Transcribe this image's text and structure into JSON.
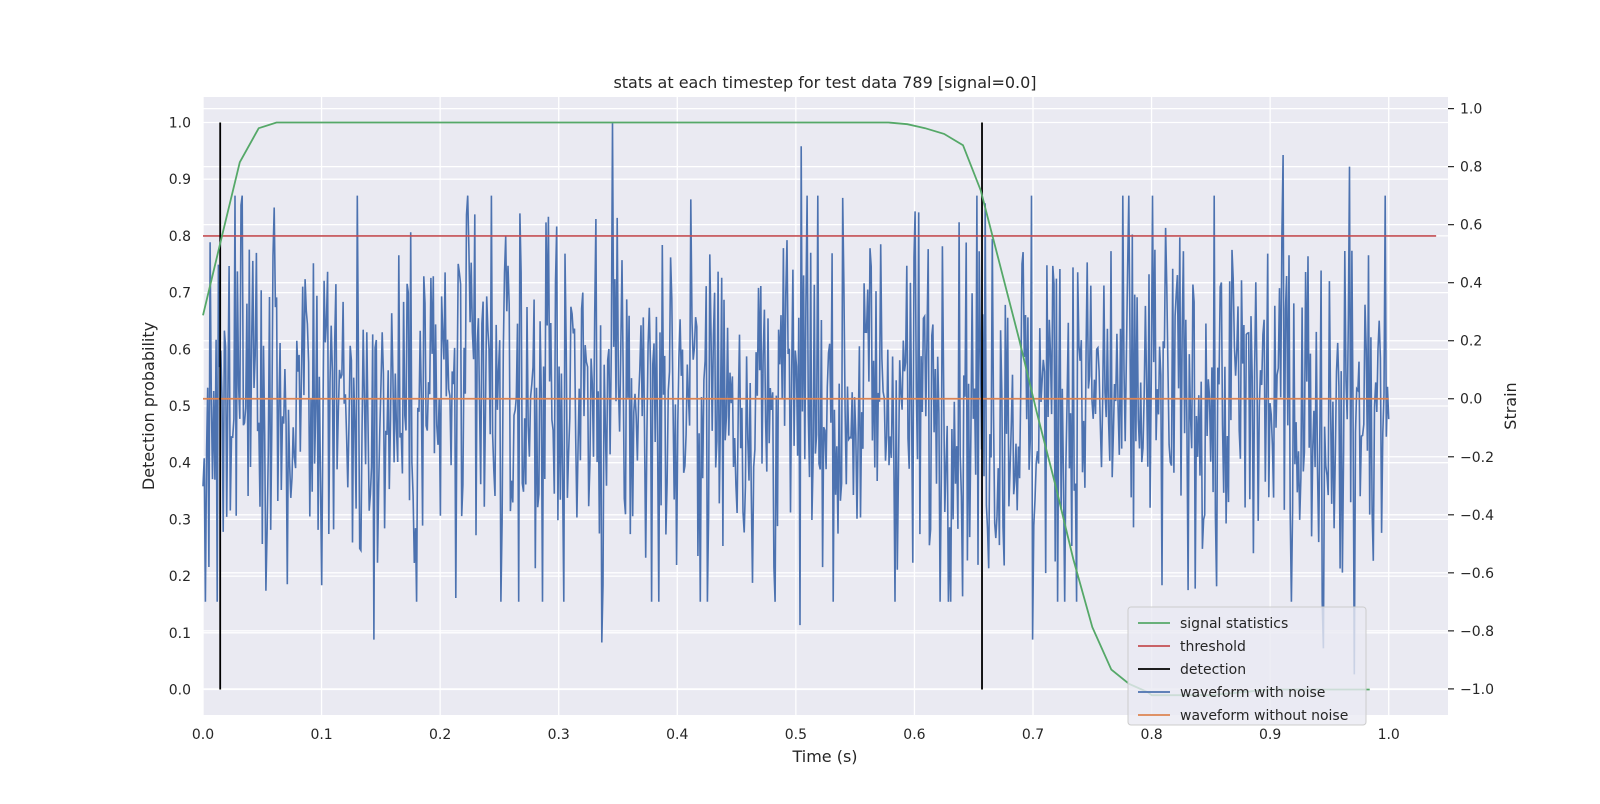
{
  "chart_data": {
    "type": "line",
    "title": "stats at each timestep for test data 789 [signal=0.0]",
    "xlabel": "Time (s)",
    "ylabel": "Detection probability",
    "ylabel_right": "Strain",
    "xlim": [
      0.0,
      1.05
    ],
    "ylim": [
      -0.045,
      1.045
    ],
    "ylim_right": [
      -1.09,
      1.04
    ],
    "xticks": [
      "0.0",
      "0.1",
      "0.2",
      "0.3",
      "0.4",
      "0.5",
      "0.6",
      "0.7",
      "0.8",
      "0.9",
      "1.0"
    ],
    "yticks": [
      "0.0",
      "0.1",
      "0.2",
      "0.3",
      "0.4",
      "0.5",
      "0.6",
      "0.7",
      "0.8",
      "0.9",
      "1.0"
    ],
    "yticks_right": [
      "−1.0",
      "−0.8",
      "−0.6",
      "−0.4",
      "−0.2",
      "0.0",
      "0.2",
      "0.4",
      "0.6",
      "0.8",
      "1.0"
    ],
    "grid": true,
    "legend_position": "lower right",
    "series": [
      {
        "name": "signal statistics",
        "color": "#55a868",
        "axis": "left",
        "x": [
          0.0,
          0.016,
          0.031,
          0.047,
          0.062,
          0.078,
          0.094,
          0.2,
          0.3,
          0.4,
          0.5,
          0.578,
          0.594,
          0.609,
          0.625,
          0.641,
          0.656,
          0.672,
          0.688,
          0.703,
          0.719,
          0.734,
          0.75,
          0.766,
          0.781,
          0.797,
          0.8,
          0.85,
          0.9,
          0.95,
          0.984
        ],
        "y": [
          0.66,
          0.8,
          0.93,
          0.99,
          1.0,
          1.0,
          1.0,
          1.0,
          1.0,
          1.0,
          1.0,
          1.0,
          0.997,
          0.99,
          0.98,
          0.96,
          0.88,
          0.75,
          0.62,
          0.49,
          0.36,
          0.23,
          0.11,
          0.035,
          0.01,
          -0.005,
          -0.01,
          -0.01,
          0.0,
          0.0,
          0.0
        ]
      },
      {
        "name": "threshold",
        "color": "#c44e52",
        "axis": "left",
        "x": [
          0.0,
          1.04
        ],
        "y": [
          0.8,
          0.8
        ]
      },
      {
        "name": "detection",
        "color": "#000000",
        "axis": "left",
        "segments": [
          {
            "x": 0.0145,
            "y": [
              0.0,
              1.0
            ]
          },
          {
            "x": 0.657,
            "y": [
              0.0,
              1.0
            ]
          }
        ]
      },
      {
        "name": "waveform with noise",
        "color": "#4c72b0",
        "axis": "right",
        "n_points": 1000,
        "x_range": [
          0.0,
          1.0
        ],
        "mean": 0.0,
        "std": 0.33,
        "extremes": [
          {
            "x": 0.345,
            "y": 0.95
          },
          {
            "x": 0.505,
            "y": 0.87
          },
          {
            "x": 0.911,
            "y": 0.84
          },
          {
            "x": 0.967,
            "y": 0.8
          },
          {
            "x": 0.144,
            "y": -0.83
          },
          {
            "x": 0.336,
            "y": -0.84
          },
          {
            "x": 0.504,
            "y": -0.78
          },
          {
            "x": 0.7,
            "y": -0.83
          },
          {
            "x": 0.945,
            "y": -0.86
          },
          {
            "x": 0.971,
            "y": -0.95
          }
        ]
      },
      {
        "name": "waveform without noise",
        "color": "#dd8452",
        "axis": "right",
        "x": [
          0.0,
          1.0
        ],
        "y": [
          0.0,
          0.0
        ]
      }
    ]
  },
  "legend": {
    "items": [
      "signal statistics",
      "threshold",
      "detection",
      "waveform with noise",
      "waveform without noise"
    ]
  }
}
